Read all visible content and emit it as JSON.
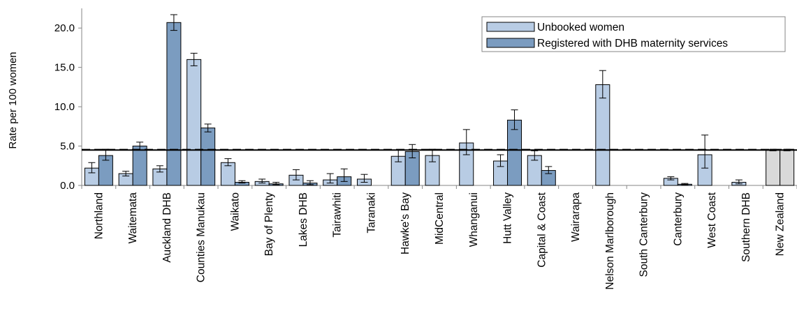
{
  "chart_data": {
    "type": "bar",
    "ylabel": "Rate per 100 women",
    "ylim": [
      0,
      22.5
    ],
    "yticks": [
      "0.0",
      "5.0",
      "10.0",
      "15.0",
      "20.0"
    ],
    "categories": [
      "Northland",
      "Waitemata",
      "Auckland DHB",
      "Counties Manukau",
      "Waikato",
      "Bay of Plenty",
      "Lakes DHB",
      "Tairawhiti",
      "Taranaki",
      "Hawke's Bay",
      "MidCentral",
      "Whanganui",
      "Hutt Valley",
      "Capital & Coast",
      "Wairarapa",
      "Nelson Marlborough",
      "South Canterbury",
      "Canterbury",
      "West Coast",
      "Southern DHB",
      "New Zealand"
    ],
    "series": [
      {
        "name": "Unbooked women",
        "color": "#b8cce4",
        "values": [
          2.2,
          1.5,
          2.1,
          16.0,
          2.9,
          0.5,
          1.3,
          0.7,
          0.8,
          3.7,
          3.8,
          5.4,
          3.1,
          3.8,
          0.0,
          12.8,
          0.0,
          0.9,
          3.9,
          0.4,
          4.5
        ],
        "error_low": [
          1.6,
          1.2,
          1.7,
          15.2,
          2.5,
          0.3,
          0.7,
          0.3,
          0.4,
          3.0,
          3.0,
          3.9,
          2.4,
          3.2,
          0.0,
          11.1,
          0.0,
          0.7,
          2.2,
          0.2,
          4.4
        ],
        "error_high": [
          2.9,
          1.8,
          2.5,
          16.8,
          3.4,
          0.8,
          2.0,
          1.5,
          1.4,
          4.5,
          4.6,
          7.1,
          3.9,
          4.4,
          0.0,
          14.6,
          0.0,
          1.1,
          6.4,
          0.7,
          4.6
        ]
      },
      {
        "name": "Registered with DHB maternity services",
        "color": "#7b9cc0",
        "values": [
          3.8,
          5.0,
          20.7,
          7.3,
          0.4,
          0.2,
          0.3,
          1.1,
          0.0,
          4.3,
          0.0,
          0.0,
          8.3,
          1.9,
          0.0,
          0.0,
          0.0,
          0.15,
          0.0,
          0.0,
          4.5
        ],
        "error_low": [
          3.2,
          4.5,
          19.7,
          6.8,
          0.3,
          0.1,
          0.1,
          0.5,
          0.0,
          3.5,
          0.0,
          0.0,
          7.1,
          1.5,
          0.0,
          0.0,
          0.0,
          0.1,
          0.0,
          0.0,
          4.4
        ],
        "error_high": [
          4.6,
          5.5,
          21.7,
          7.8,
          0.6,
          0.4,
          0.6,
          2.1,
          0.0,
          5.2,
          0.0,
          0.0,
          9.6,
          2.4,
          0.0,
          0.0,
          0.0,
          0.25,
          0.0,
          0.0,
          4.6
        ]
      }
    ],
    "reference_lines": [
      {
        "value": 4.5,
        "style": "solid"
      },
      {
        "value": 4.55,
        "style": "dashed"
      }
    ],
    "legend_placement": "top-right",
    "grid": false,
    "colors": {
      "nz_bar": "#d9d9d9",
      "axis": "#868686",
      "error_bar": "#000000"
    }
  }
}
